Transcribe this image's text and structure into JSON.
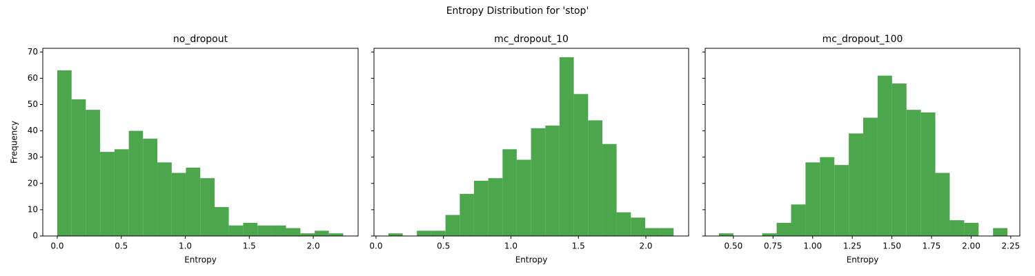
{
  "title": "Entropy Distribution for 'stop'",
  "chart_data": [
    {
      "type": "histogram",
      "title": "no_dropout",
      "xlabel": "Entropy",
      "ylabel": "Frequency",
      "color": "#4ca64c",
      "bins": [
        0,
        0.112,
        0.223,
        0.335,
        0.447,
        0.559,
        0.67,
        0.782,
        0.894,
        1.005,
        1.117,
        1.229,
        1.34,
        1.452,
        1.564,
        1.676,
        1.787,
        1.899,
        2.011,
        2.122,
        2.234
      ],
      "values": [
        63,
        52,
        48,
        32,
        33,
        40,
        37,
        28,
        24,
        26,
        22,
        11,
        4,
        5,
        4,
        4,
        3,
        1,
        2,
        1
      ],
      "xlim": [
        -0.113,
        2.35
      ],
      "ylim": [
        0,
        71.4
      ],
      "xticks": [
        {
          "value": 0,
          "label": "0.0"
        },
        0.5,
        {
          "value": 1,
          "label": "1.0"
        },
        1.5,
        {
          "value": 2,
          "label": "2.0"
        }
      ],
      "yticks": [
        0,
        10,
        20,
        30,
        40,
        50,
        60,
        70
      ]
    },
    {
      "type": "histogram",
      "title": "mc_dropout_10",
      "xlabel": "Entropy",
      "color": "#4ca64c",
      "bins": [
        0.092,
        0.198,
        0.303,
        0.409,
        0.515,
        0.621,
        0.726,
        0.832,
        0.938,
        1.043,
        1.149,
        1.255,
        1.36,
        1.466,
        1.572,
        1.678,
        1.783,
        1.889,
        1.995,
        2.1,
        2.206
      ],
      "values": [
        1,
        0,
        2,
        2,
        8,
        16,
        21,
        22,
        33,
        29,
        41,
        42,
        68,
        54,
        44,
        35,
        9,
        7,
        3,
        3
      ],
      "xlim": [
        -0.015,
        2.317
      ],
      "ylim": [
        0,
        71.4
      ],
      "xticks": [
        {
          "value": 0,
          "label": "0.0"
        },
        0.5,
        {
          "value": 1,
          "label": "1.0"
        },
        1.5,
        {
          "value": 2,
          "label": "2.0"
        }
      ]
    },
    {
      "type": "histogram",
      "title": "mc_dropout_100",
      "xlabel": "Entropy",
      "color": "#4ca64c",
      "bins": [
        0.409,
        0.5,
        0.591,
        0.682,
        0.773,
        0.864,
        0.955,
        1.046,
        1.137,
        1.228,
        1.319,
        1.41,
        1.501,
        1.592,
        1.683,
        1.774,
        1.865,
        1.956,
        2.047,
        2.138,
        2.229
      ],
      "values": [
        1,
        0,
        0,
        1,
        5,
        12,
        28,
        30,
        27,
        39,
        45,
        61,
        58,
        48,
        47,
        24,
        6,
        5,
        0,
        3
      ],
      "xlim": [
        0.322,
        2.307
      ],
      "ylim": [
        0,
        71.4
      ],
      "xticks": [
        {
          "value": 0.5,
          "label": "0.50"
        },
        0.75,
        {
          "value": 1,
          "label": "1.00"
        },
        1.25,
        {
          "value": 1.5,
          "label": "1.50"
        },
        1.75,
        {
          "value": 2,
          "label": "2.00"
        },
        2.25
      ]
    }
  ]
}
